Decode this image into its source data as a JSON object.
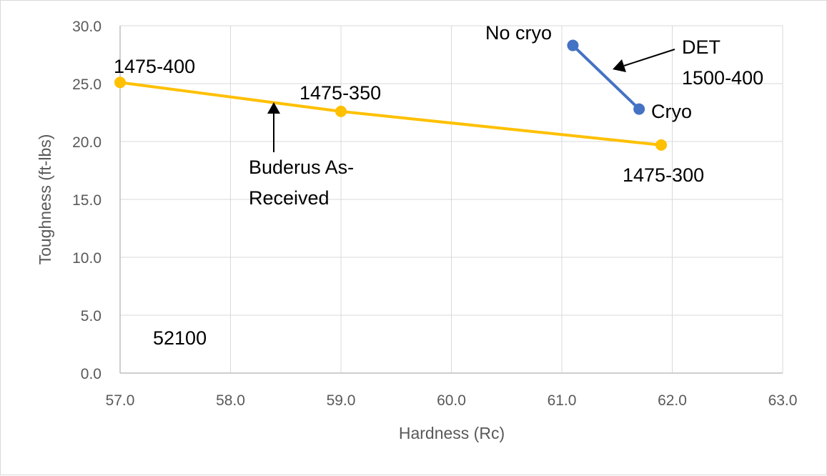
{
  "chart_data": {
    "type": "scatter",
    "xlabel": "Hardness (Rc)",
    "ylabel": "Toughness (ft-lbs)",
    "xlim": [
      57.0,
      63.0
    ],
    "ylim": [
      0.0,
      30.0
    ],
    "x_ticks": [
      "57.0",
      "58.0",
      "59.0",
      "60.0",
      "61.0",
      "62.0",
      "63.0"
    ],
    "y_ticks": [
      "0.0",
      "5.0",
      "10.0",
      "15.0",
      "20.0",
      "25.0",
      "30.0"
    ],
    "grid": true,
    "series": [
      {
        "color": "#FFC000",
        "points": [
          {
            "x": 57.0,
            "y": 25.1,
            "label": "1475-400"
          },
          {
            "x": 59.0,
            "y": 22.6,
            "label": "1475-350"
          },
          {
            "x": 61.9,
            "y": 19.7,
            "label": "1475-300"
          }
        ]
      },
      {
        "color": "#4472C4",
        "points": [
          {
            "x": 61.1,
            "y": 28.3,
            "label": "No cryo"
          },
          {
            "x": 61.7,
            "y": 22.8,
            "label": "Cryo"
          }
        ]
      }
    ],
    "annotations": {
      "det": [
        "DET",
        "1500-400"
      ],
      "buderus": [
        "Buderus  As-",
        "Received"
      ],
      "steel": "52100"
    }
  }
}
